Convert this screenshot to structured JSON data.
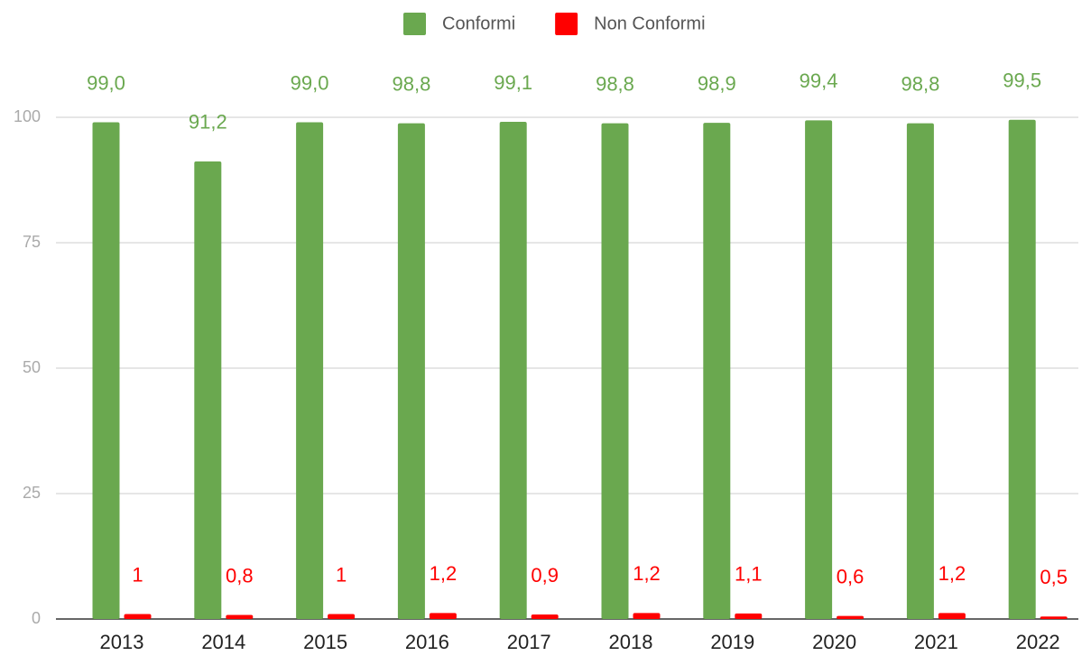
{
  "chart_data": {
    "type": "bar",
    "categories": [
      "2013",
      "2014",
      "2015",
      "2016",
      "2017",
      "2018",
      "2019",
      "2020",
      "2021",
      "2022"
    ],
    "series": [
      {
        "name": "Conformi",
        "color": "#6aa84f",
        "values": [
          99.0,
          91.2,
          99.0,
          98.8,
          99.1,
          98.8,
          98.9,
          99.4,
          98.8,
          99.5
        ],
        "value_labels": [
          "99,0",
          "91,2",
          "99,0",
          "98,8",
          "99,1",
          "98,8",
          "98,9",
          "99,4",
          "98,8",
          "99,5"
        ]
      },
      {
        "name": "Non Conformi",
        "color": "#ff0000",
        "values": [
          1,
          0.8,
          1,
          1.2,
          0.9,
          1.2,
          1.1,
          0.6,
          1.2,
          0.5
        ],
        "value_labels": [
          "1",
          "0,8",
          "1",
          "1,2",
          "0,9",
          "1,2",
          "1,1",
          "0,6",
          "1,2",
          "0,5"
        ]
      }
    ],
    "ylim": [
      0,
      100
    ],
    "yticks": [
      0,
      25,
      50,
      75,
      100
    ],
    "grid": true,
    "legend": "top"
  }
}
